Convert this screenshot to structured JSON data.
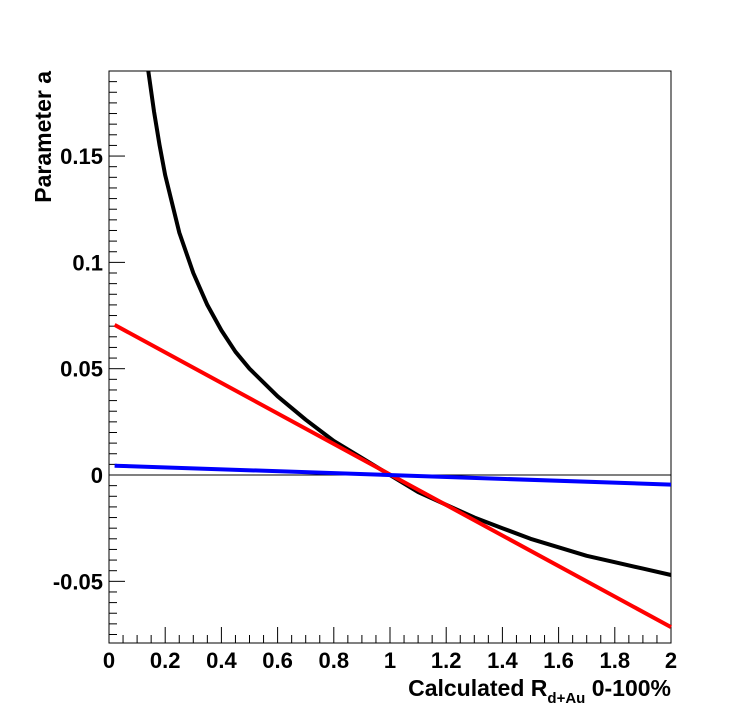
{
  "chart_data": {
    "type": "line",
    "xlabel": "Calculated R",
    "xlabel_sub": "d+Au",
    "xlabel_suffix": " 0-100%",
    "ylabel": "Parameter a",
    "xlim": [
      0,
      2
    ],
    "ylim": [
      -0.079,
      0.19
    ],
    "grid": false,
    "x_ticks": [
      {
        "value": 0,
        "label": "0"
      },
      {
        "value": 0.2,
        "label": "0.2"
      },
      {
        "value": 0.4,
        "label": "0.4"
      },
      {
        "value": 0.6,
        "label": "0.6"
      },
      {
        "value": 0.8,
        "label": "0.8"
      },
      {
        "value": 1.0,
        "label": "1"
      },
      {
        "value": 1.2,
        "label": "1.2"
      },
      {
        "value": 1.4,
        "label": "1.4"
      },
      {
        "value": 1.6,
        "label": "1.6"
      },
      {
        "value": 1.8,
        "label": "1.8"
      },
      {
        "value": 2.0,
        "label": "2"
      }
    ],
    "y_ticks": [
      {
        "value": -0.05,
        "label": "-0.05"
      },
      {
        "value": 0,
        "label": "0"
      },
      {
        "value": 0.05,
        "label": "0.05"
      },
      {
        "value": 0.1,
        "label": "0.1"
      },
      {
        "value": 0.15,
        "label": "0.15"
      }
    ],
    "reference_line_y": 0,
    "series": [
      {
        "color": "#000000",
        "x": [
          0.14,
          0.16,
          0.18,
          0.2,
          0.25,
          0.3,
          0.35,
          0.4,
          0.45,
          0.5,
          0.6,
          0.7,
          0.8,
          0.9,
          1.0,
          1.1,
          1.2,
          1.3,
          1.4,
          1.5,
          1.6,
          1.7,
          1.8,
          1.9,
          2.0
        ],
        "y": [
          0.19,
          0.171,
          0.155,
          0.141,
          0.114,
          0.095,
          0.08,
          0.068,
          0.058,
          0.05,
          0.037,
          0.026,
          0.016,
          0.008,
          0.0,
          -0.008,
          -0.014,
          -0.02,
          -0.025,
          -0.03,
          -0.034,
          -0.038,
          -0.041,
          -0.044,
          -0.047
        ]
      },
      {
        "color": "#ff0000",
        "x": [
          0.02,
          2.0
        ],
        "y": [
          0.0706,
          -0.0715
        ]
      },
      {
        "color": "#0000ff",
        "x": [
          0.02,
          2.0
        ],
        "y": [
          0.0044,
          -0.0045
        ]
      }
    ]
  }
}
